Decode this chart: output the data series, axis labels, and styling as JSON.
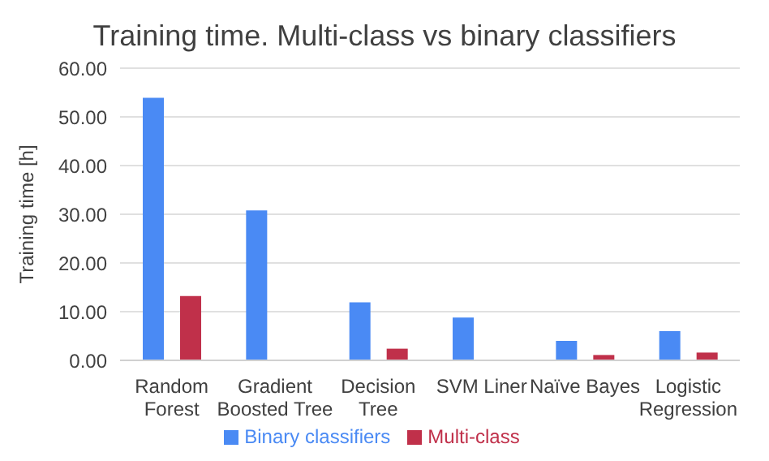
{
  "chart_data": {
    "type": "bar",
    "title": "Training time. Multi-class vs binary classifiers",
    "ylabel": "Training time [h]",
    "categories": [
      "Random Forest",
      "Gradient Boosted Tree",
      "Decision Tree",
      "SVM Liner",
      "Naïve Bayes",
      "Logistic Regression"
    ],
    "series": [
      {
        "name": "Binary classifiers",
        "color": "#4a8af4",
        "values": [
          53.9,
          30.8,
          11.9,
          8.8,
          4.0,
          6.0
        ]
      },
      {
        "name": "Multi-class",
        "color": "#c0304a",
        "values": [
          13.2,
          null,
          2.4,
          null,
          1.1,
          1.6
        ]
      }
    ],
    "ylim": [
      0,
      60
    ],
    "yticks": [
      {
        "value": 0,
        "label": "0.00"
      },
      {
        "value": 10,
        "label": "10.00"
      },
      {
        "value": 20,
        "label": "20.00"
      },
      {
        "value": 30,
        "label": "30.00"
      },
      {
        "value": 40,
        "label": "40.00"
      },
      {
        "value": 50,
        "label": "50.00"
      },
      {
        "value": 60,
        "label": "60.00"
      }
    ],
    "grid": "y",
    "legend": "bottom"
  }
}
